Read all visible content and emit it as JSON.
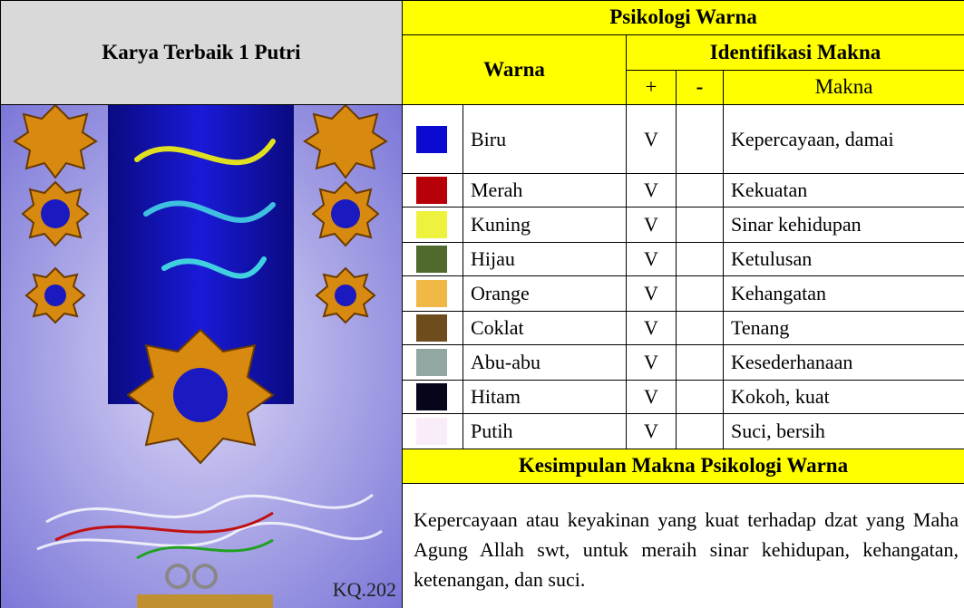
{
  "left": {
    "title": "Karya Terbaik 1 Putri",
    "image_caption": "KQ.202"
  },
  "table": {
    "title": "Psikologi Warna",
    "color_header": "Warna",
    "meaning_header": "Identifikasi Makna",
    "plus_header": "+",
    "minus_header": "-",
    "makna_header": "Makna",
    "rows": [
      {
        "color": "#0a0ad0",
        "name": "Biru",
        "plus": "V",
        "meaning": "Kepercayaan, damai"
      },
      {
        "color": "#b80008",
        "name": "Merah",
        "plus": "V",
        "meaning": "Kekuatan"
      },
      {
        "color": "#eef23c",
        "name": "Kuning",
        "plus": "V",
        "meaning": "Sinar kehidupan"
      },
      {
        "color": "#4f6a2c",
        "name": "Hijau",
        "plus": "V",
        "meaning": "Ketulusan"
      },
      {
        "color": "#f0b844",
        "name": "Orange",
        "plus": "V",
        "meaning": "Kehangatan"
      },
      {
        "color": "#6e4c1c",
        "name": "Coklat",
        "plus": "V",
        "meaning": "Tenang"
      },
      {
        "color": "#93a7a2",
        "name": "Abu-abu",
        "plus": "V",
        "meaning": "Kesederhanaan"
      },
      {
        "color": "#06061a",
        "name": "Hitam",
        "plus": "V",
        "meaning": "Kokoh, kuat"
      },
      {
        "color": "#f8edf8",
        "name": "Putih",
        "plus": "V",
        "meaning": "Suci, bersih"
      }
    ],
    "conclusion_title": "Kesimpulan Makna Psikologi Warna",
    "conclusion": "Kepercayaan atau keyakinan yang kuat terhadap dzat yang Maha Agung Allah swt, untuk meraih sinar kehidupan, kehangatan, ketenangan, dan suci."
  }
}
